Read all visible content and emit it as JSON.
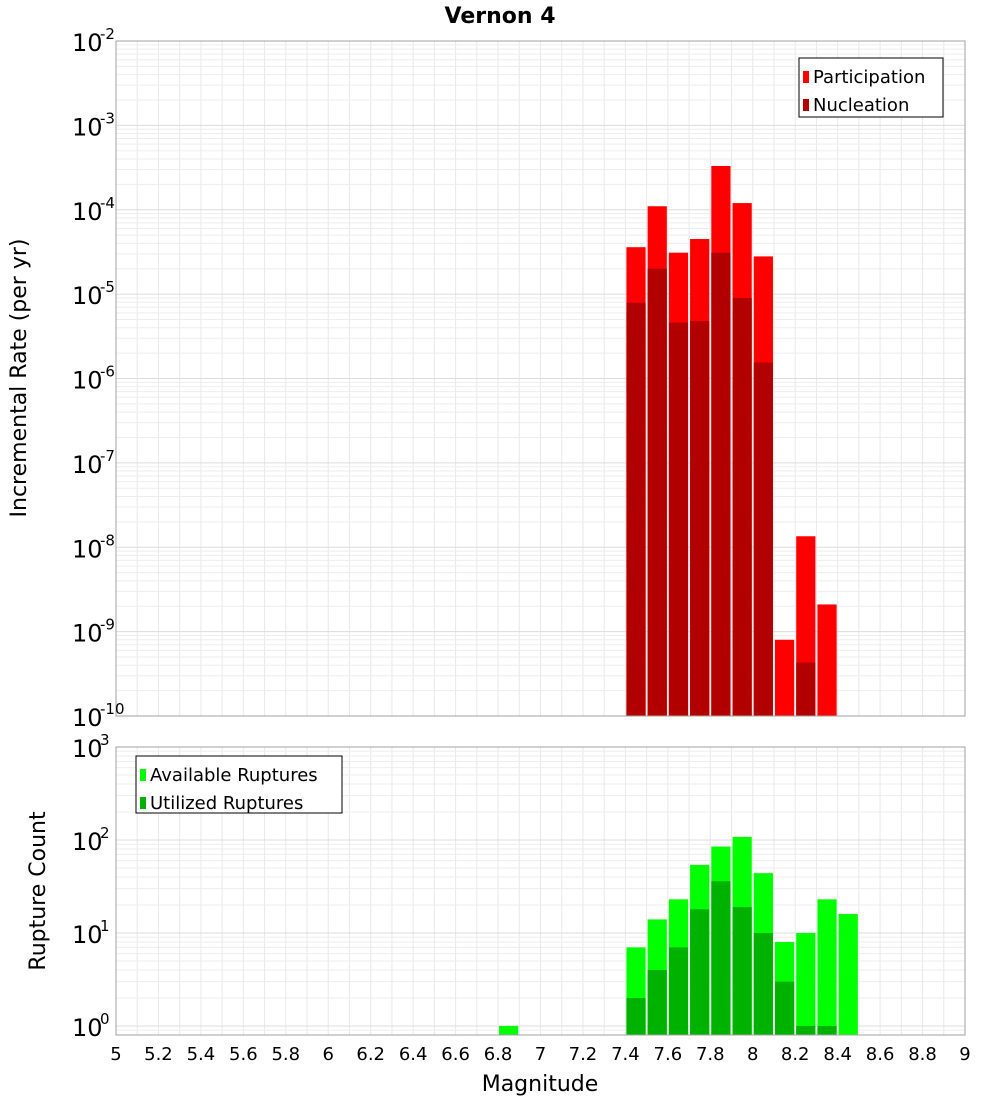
{
  "chart_data": [
    {
      "type": "bar",
      "title": "Vernon 4",
      "xlabel": "Magnitude",
      "ylabel": "Incremental Rate (per yr)",
      "y_scale": "log",
      "ylim": [
        1e-10,
        0.01
      ],
      "x": [
        7.45,
        7.55,
        7.65,
        7.75,
        7.85,
        7.95,
        8.05,
        8.15,
        8.25,
        8.35
      ],
      "series": [
        {
          "name": "Participation",
          "color": "#ff0000",
          "values": [
            3.6e-05,
            0.00011,
            3.1e-05,
            4.5e-05,
            0.00033,
            0.00012,
            2.8e-05,
            8e-10,
            1.35e-08,
            2.1e-09
          ]
        },
        {
          "name": "Nucleation",
          "color": "#b20000",
          "values": [
            7.9e-06,
            2e-05,
            4.6e-06,
            4.8e-06,
            3.1e-05,
            9e-06,
            1.55e-06,
            null,
            4.3e-10,
            null
          ]
        }
      ],
      "legend": "top-right",
      "grid": true
    },
    {
      "type": "bar",
      "xlabel": "Magnitude",
      "ylabel": "Rupture Count",
      "y_scale": "log",
      "ylim": [
        0.8,
        1000
      ],
      "xlim": [
        5,
        9
      ],
      "x_ticks": [
        "5",
        "5.2",
        "5.4",
        "5.6",
        "5.8",
        "6",
        "6.2",
        "6.4",
        "6.6",
        "6.8",
        "7",
        "7.2",
        "7.4",
        "7.6",
        "7.8",
        "8",
        "8.2",
        "8.4",
        "8.6",
        "8.8",
        "9"
      ],
      "x": [
        6.85,
        7.45,
        7.55,
        7.65,
        7.75,
        7.85,
        7.95,
        8.05,
        8.15,
        8.25,
        8.35,
        8.45
      ],
      "series": [
        {
          "name": "Available Ruptures",
          "color": "#00ff00",
          "values": [
            1,
            7,
            14,
            23,
            54,
            85,
            108,
            44,
            8,
            10,
            23,
            16
          ]
        },
        {
          "name": "Utilized Ruptures",
          "color": "#00b200",
          "values": [
            null,
            2,
            4,
            7,
            18,
            36,
            19,
            10,
            3,
            1,
            1,
            null
          ]
        }
      ],
      "legend": "top-left",
      "grid": true
    }
  ],
  "y_tick_labels": {
    "top": [
      {
        "base": "10",
        "exp": "-10"
      },
      {
        "base": "10",
        "exp": "-9"
      },
      {
        "base": "10",
        "exp": "-8"
      },
      {
        "base": "10",
        "exp": "-7"
      },
      {
        "base": "10",
        "exp": "-6"
      },
      {
        "base": "10",
        "exp": "-5"
      },
      {
        "base": "10",
        "exp": "-4"
      },
      {
        "base": "10",
        "exp": "-3"
      },
      {
        "base": "10",
        "exp": "-2"
      }
    ],
    "bottom": [
      {
        "base": "10",
        "exp": "0"
      },
      {
        "base": "10",
        "exp": "1"
      },
      {
        "base": "10",
        "exp": "2"
      },
      {
        "base": "10",
        "exp": "3"
      }
    ]
  }
}
